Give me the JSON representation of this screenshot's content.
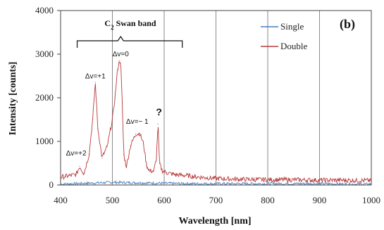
{
  "chart_data": {
    "type": "line",
    "title": "",
    "panel_label": "(b)",
    "xlabel": "Wavelength [nm]",
    "ylabel": "Intensity [counts]",
    "xlim": [
      400,
      1000
    ],
    "ylim": [
      0,
      4000
    ],
    "xticks": [
      400,
      500,
      600,
      700,
      800,
      900,
      1000
    ],
    "yticks": [
      0,
      1000,
      2000,
      3000,
      4000
    ],
    "grid": "vertical",
    "legend_position": "top-right",
    "band_label": {
      "prefix": "C",
      "sub": "2",
      "suffix": " Swan band"
    },
    "annotations": [
      {
        "text": "Δv=0",
        "x": 516,
        "y": 2950
      },
      {
        "text": "Δv=+1",
        "x": 467,
        "y": 2440
      },
      {
        "text": "Δv=+2",
        "x": 430,
        "y": 680
      },
      {
        "text": "Δv=− 1",
        "x": 548,
        "y": 1400
      },
      {
        "text": "?",
        "x": 590,
        "y": 1600
      }
    ],
    "series": [
      {
        "name": "Single",
        "color": "#4a7fc1",
        "x": [
          400,
          450,
          500,
          550,
          600,
          650,
          700,
          750,
          800,
          850,
          900,
          950,
          1000
        ],
        "values": [
          20,
          40,
          60,
          50,
          40,
          30,
          30,
          30,
          30,
          30,
          30,
          20,
          20
        ]
      },
      {
        "name": "Double",
        "color": "#b83a3a",
        "x": [
          400,
          410,
          420,
          430,
          437,
          445,
          455,
          462,
          467,
          472,
          480,
          490,
          500,
          505,
          510,
          514,
          516,
          519,
          522,
          527,
          535,
          545,
          553,
          560,
          566,
          572,
          580,
          585,
          588,
          591,
          596,
          605,
          620,
          640,
          660,
          680,
          700,
          750,
          800,
          850,
          900,
          950,
          1000
        ],
        "values": [
          180,
          200,
          220,
          240,
          420,
          260,
          700,
          1500,
          2350,
          1300,
          620,
          880,
          1500,
          2000,
          2650,
          2850,
          2800,
          1900,
          700,
          420,
          900,
          1170,
          1180,
          950,
          450,
          320,
          320,
          600,
          1400,
          500,
          330,
          280,
          240,
          220,
          190,
          170,
          150,
          130,
          120,
          120,
          110,
          110,
          100
        ]
      }
    ]
  }
}
